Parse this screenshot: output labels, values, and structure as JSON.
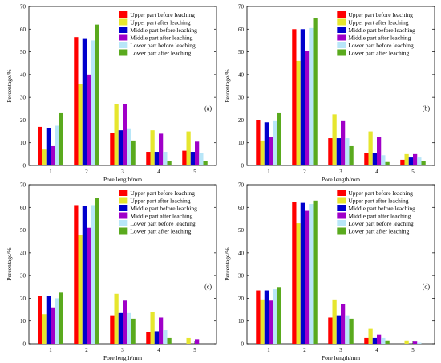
{
  "colors": [
    "#ff0000",
    "#e6e62e",
    "#0000cd",
    "#a000c8",
    "#b8e6f8",
    "#5aaa1e"
  ],
  "chart_data": [
    {
      "type": "bar",
      "panel_label": "(a)",
      "categories": [
        "1",
        "2",
        "3",
        "4",
        "5"
      ],
      "xlabel": "Pore length/mm",
      "ylabel": "Percentage/%",
      "ylim": [
        0,
        70
      ],
      "yticks": [
        "0",
        "10",
        "20",
        "30",
        "40",
        "50",
        "60",
        "70"
      ],
      "series": [
        {
          "name": "Upper part before leaching",
          "values": [
            17,
            56.5,
            14.2,
            6,
            6.5
          ]
        },
        {
          "name": "Upper part after leaching",
          "values": [
            7,
            36,
            27,
            15.5,
            15
          ]
        },
        {
          "name": "Middle part before leaching",
          "values": [
            16.5,
            56,
            15.5,
            6,
            6
          ]
        },
        {
          "name": "Middle part after leaching",
          "values": [
            8.5,
            40,
            27,
            14,
            10.5
          ]
        },
        {
          "name": "Lower part before leaching",
          "values": [
            17.5,
            55,
            16,
            6,
            5.5
          ]
        },
        {
          "name": "Lower part after leaching",
          "values": [
            23,
            62,
            11,
            2,
            2
          ]
        }
      ]
    },
    {
      "type": "bar",
      "panel_label": "(b)",
      "categories": [
        "1",
        "2",
        "3",
        "4",
        "5"
      ],
      "xlabel": "Pore length/mm",
      "ylabel": "Percentage/%",
      "ylim": [
        0,
        70
      ],
      "yticks": [
        "0",
        "10",
        "20",
        "30",
        "40",
        "50",
        "60",
        "70"
      ],
      "series": [
        {
          "name": "Upper part before leaching",
          "values": [
            20,
            60,
            12,
            5.5,
            2.5
          ]
        },
        {
          "name": "Upper part after leaching",
          "values": [
            11,
            46,
            22.5,
            15,
            5
          ]
        },
        {
          "name": "Middle part before leaching",
          "values": [
            19,
            60,
            12,
            5.5,
            3.5
          ]
        },
        {
          "name": "Middle part after leaching",
          "values": [
            12.5,
            50.5,
            19.5,
            12.5,
            5
          ]
        },
        {
          "name": "Lower part before leaching",
          "values": [
            19.5,
            60.5,
            12,
            4.5,
            3.5
          ]
        },
        {
          "name": "Lower part after leaching",
          "values": [
            23,
            65,
            8.5,
            1.5,
            2
          ]
        }
      ]
    },
    {
      "type": "bar",
      "panel_label": "(c)",
      "categories": [
        "1",
        "2",
        "3",
        "4",
        "5"
      ],
      "xlabel": "Pore length/mm",
      "ylabel": "Percentage/%",
      "ylim": [
        0,
        70
      ],
      "yticks": [
        "0",
        "10",
        "20",
        "30",
        "40",
        "50",
        "60",
        "70"
      ],
      "series": [
        {
          "name": "Upper part before leaching",
          "values": [
            21,
            61,
            12.5,
            5,
            0
          ]
        },
        {
          "name": "Upper part after leaching",
          "values": [
            13,
            48,
            22,
            14,
            2.5
          ]
        },
        {
          "name": "Middle part before leaching",
          "values": [
            21,
            60.5,
            13.5,
            5.5,
            0
          ]
        },
        {
          "name": "Middle part after leaching",
          "values": [
            16,
            51,
            19,
            11.5,
            2
          ]
        },
        {
          "name": "Lower part before leaching",
          "values": [
            20,
            61,
            13.5,
            6,
            0
          ]
        },
        {
          "name": "Lower part after leaching",
          "values": [
            22.5,
            64,
            11,
            2.5,
            0
          ]
        }
      ]
    },
    {
      "type": "bar",
      "panel_label": "(d)",
      "categories": [
        "1",
        "2",
        "3",
        "4",
        "5"
      ],
      "xlabel": "Pore length/mm",
      "ylabel": "Percentage/%",
      "ylim": [
        0,
        70
      ],
      "yticks": [
        "0",
        "10",
        "20",
        "30",
        "40",
        "50",
        "60",
        "70"
      ],
      "series": [
        {
          "name": "Upper part before leaching",
          "values": [
            23.5,
            62.5,
            11.5,
            2.5,
            0
          ]
        },
        {
          "name": "Upper part after leaching",
          "values": [
            19.5,
            53,
            19.5,
            6.5,
            1.5
          ]
        },
        {
          "name": "Middle part before leaching",
          "values": [
            23.5,
            62,
            12.5,
            2.5,
            0
          ]
        },
        {
          "name": "Middle part after leaching",
          "values": [
            19,
            58.5,
            17.5,
            4,
            1
          ]
        },
        {
          "name": "Lower part before leaching",
          "values": [
            24,
            61.5,
            12.5,
            2.5,
            0.5
          ]
        },
        {
          "name": "Lower part after leaching",
          "values": [
            25,
            63,
            11,
            1.5,
            0
          ]
        }
      ]
    }
  ]
}
